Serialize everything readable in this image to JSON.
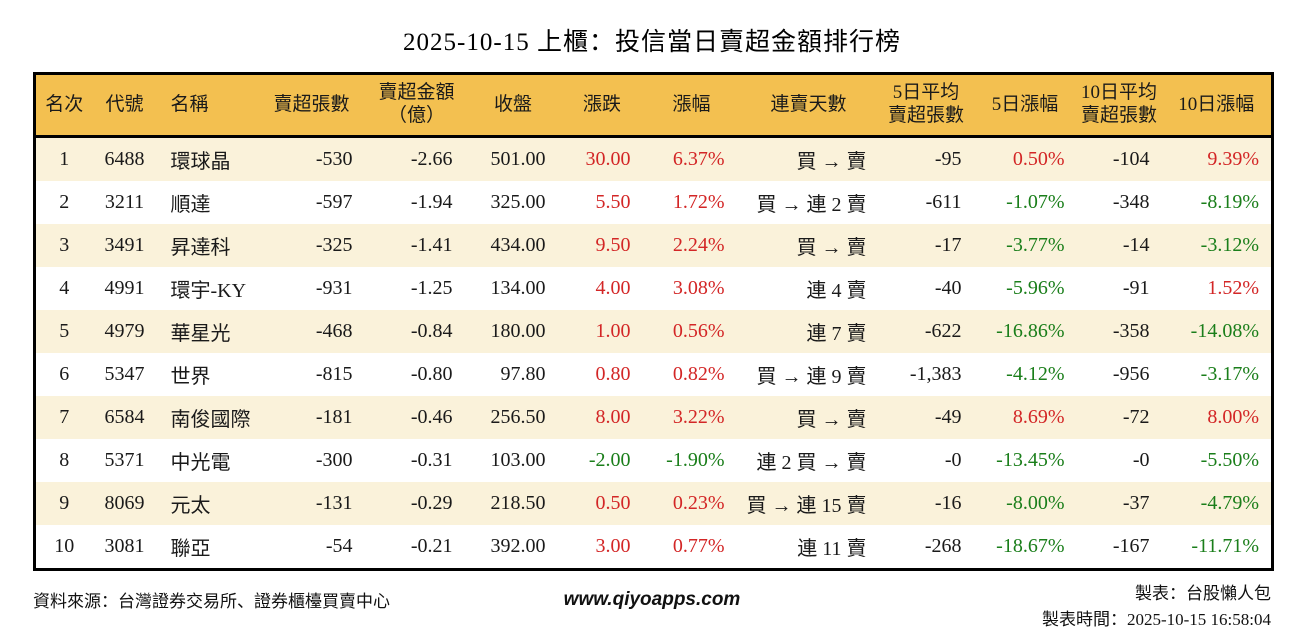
{
  "chart_data": {
    "type": "table",
    "title": "2025-10-15 上櫃：投信當日賣超金額排行榜",
    "columns": [
      "名次",
      "代號",
      "名稱",
      "賣超張數",
      "賣超金額\n（億）",
      "收盤",
      "漲跌",
      "漲幅",
      "連賣天數",
      "5日平均\n賣超張數",
      "5日漲幅",
      "10日平均\n賣超張數",
      "10日漲幅"
    ],
    "colored_columns": [
      6,
      7,
      10,
      12
    ],
    "color_rule": "negative values green (down), positive values red (up)",
    "rows": [
      [
        "1",
        "6488",
        "環球晶",
        "-530",
        "-2.66",
        "501.00",
        "30.00",
        "6.37%",
        "買 → 賣",
        "-95",
        "0.50%",
        "-104",
        "9.39%"
      ],
      [
        "2",
        "3211",
        "順達",
        "-597",
        "-1.94",
        "325.00",
        "5.50",
        "1.72%",
        "買 → 連 2 賣",
        "-611",
        "-1.07%",
        "-348",
        "-8.19%"
      ],
      [
        "3",
        "3491",
        "昇達科",
        "-325",
        "-1.41",
        "434.00",
        "9.50",
        "2.24%",
        "買 → 賣",
        "-17",
        "-3.77%",
        "-14",
        "-3.12%"
      ],
      [
        "4",
        "4991",
        "環宇-KY",
        "-931",
        "-1.25",
        "134.00",
        "4.00",
        "3.08%",
        "連 4 賣",
        "-40",
        "-5.96%",
        "-91",
        "1.52%"
      ],
      [
        "5",
        "4979",
        "華星光",
        "-468",
        "-0.84",
        "180.00",
        "1.00",
        "0.56%",
        "連 7 賣",
        "-622",
        "-16.86%",
        "-358",
        "-14.08%"
      ],
      [
        "6",
        "5347",
        "世界",
        "-815",
        "-0.80",
        "97.80",
        "0.80",
        "0.82%",
        "買 → 連 9 賣",
        "-1,383",
        "-4.12%",
        "-956",
        "-3.17%"
      ],
      [
        "7",
        "6584",
        "南俊國際",
        "-181",
        "-0.46",
        "256.50",
        "8.00",
        "3.22%",
        "買 → 賣",
        "-49",
        "8.69%",
        "-72",
        "8.00%"
      ],
      [
        "8",
        "5371",
        "中光電",
        "-300",
        "-0.31",
        "103.00",
        "-2.00",
        "-1.90%",
        "連 2 買 → 賣",
        "-0",
        "-13.45%",
        "-0",
        "-5.50%"
      ],
      [
        "9",
        "8069",
        "元太",
        "-131",
        "-0.29",
        "218.50",
        "0.50",
        "0.23%",
        "買 → 連 15 賣",
        "-16",
        "-8.00%",
        "-37",
        "-4.79%"
      ],
      [
        "10",
        "3081",
        "聯亞",
        "-54",
        "-0.21",
        "392.00",
        "3.00",
        "0.77%",
        "連 11 賣",
        "-268",
        "-18.67%",
        "-167",
        "-11.71%"
      ]
    ]
  },
  "colors": {
    "up": "#d32626",
    "down": "#1a7e1a",
    "header_bg": "#f3c050",
    "stripe_bg": "#faf2da",
    "border": "#000000"
  },
  "footer": {
    "source": "資料來源：台灣證券交易所、證券櫃檯買賣中心",
    "website": "www.qiyoapps.com",
    "maker": "製表：台股懶人包",
    "timestamp": "製表時間：2025-10-15 16:58:04"
  }
}
